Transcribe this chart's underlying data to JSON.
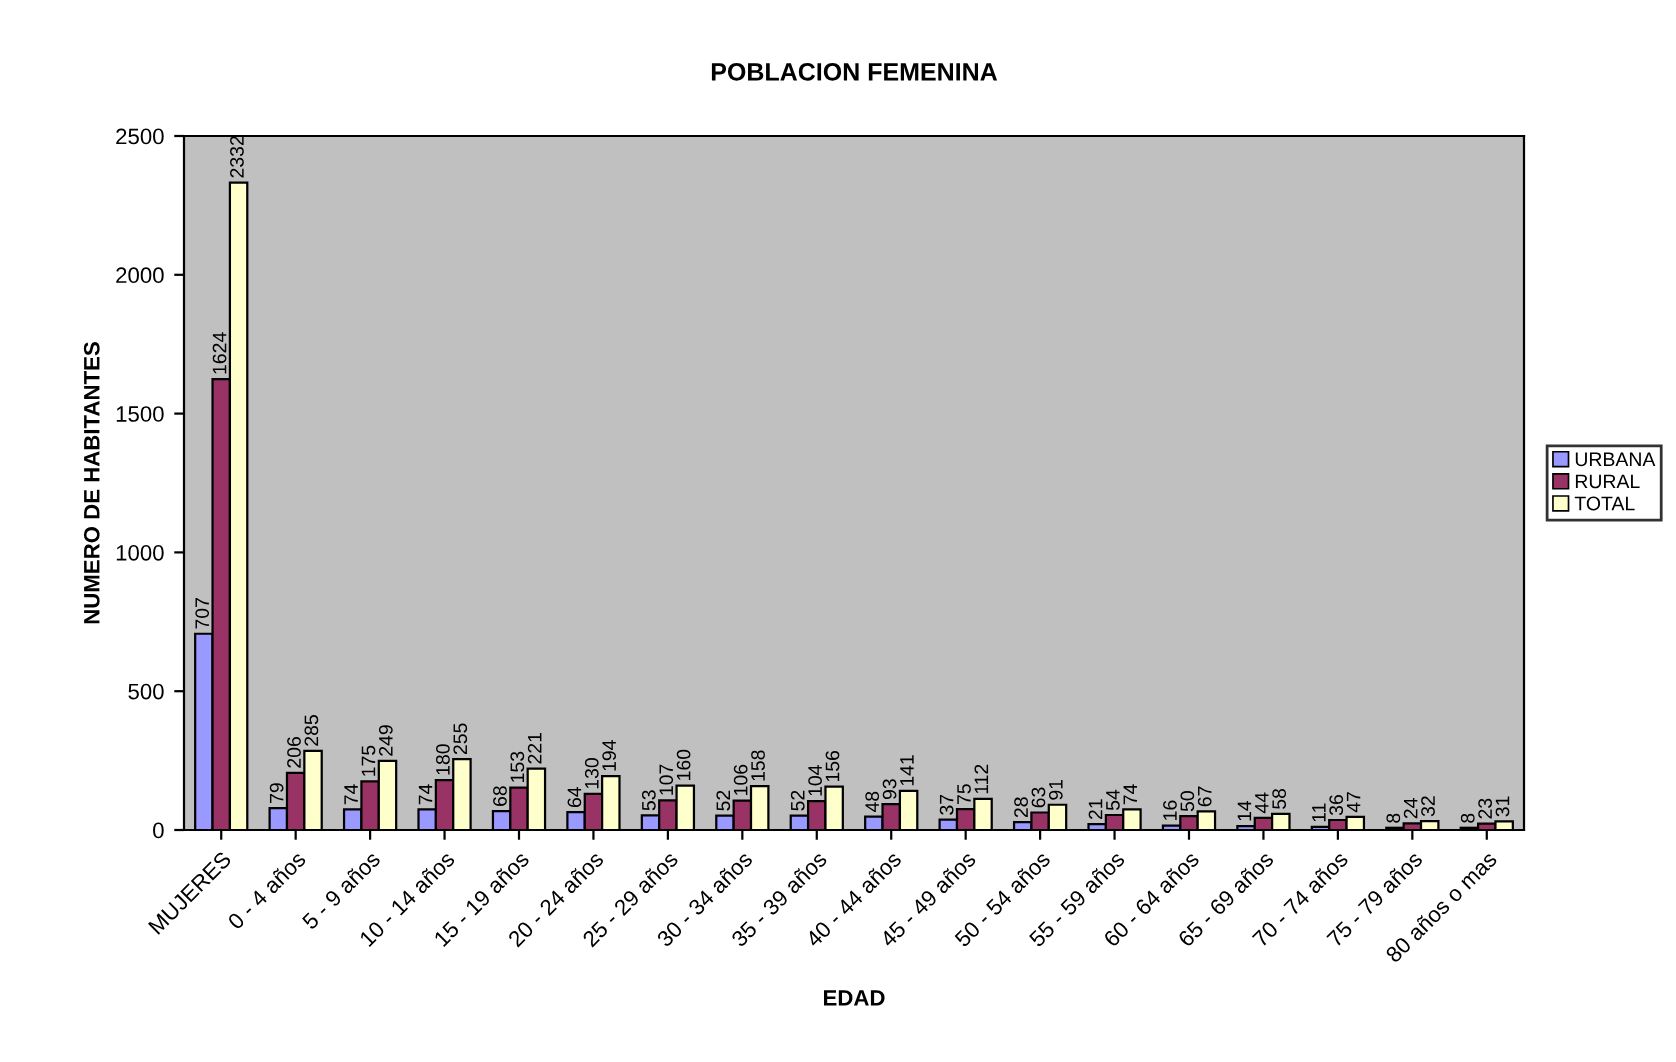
{
  "chart_data": {
    "type": "bar",
    "title": "POBLACION FEMENINA",
    "xlabel": "EDAD",
    "ylabel": "NUMERO DE HABITANTES",
    "categories": [
      "MUJERES",
      "0 - 4 años",
      "5 - 9 años",
      "10 - 14 años",
      "15 - 19 años",
      "20 - 24 años",
      "25 - 29 años",
      "30 - 34 años",
      "35 - 39 años",
      "40 - 44 años",
      "45 - 49 años",
      "50 - 54 años",
      "55 - 59 años",
      "60 - 64 años",
      "65 - 69 años",
      "70 - 74 años",
      "75 - 79 años",
      "80 años o mas"
    ],
    "series": [
      {
        "name": "URBANA",
        "color": "#9999ff",
        "values": [
          707,
          79,
          74,
          74,
          68,
          64,
          53,
          52,
          52,
          48,
          37,
          28,
          21,
          16,
          14,
          11,
          8,
          8
        ]
      },
      {
        "name": "RURAL",
        "color": "#993366",
        "values": [
          1624,
          206,
          175,
          180,
          153,
          130,
          107,
          106,
          104,
          93,
          75,
          63,
          54,
          50,
          44,
          36,
          24,
          23
        ]
      },
      {
        "name": "TOTAL",
        "color": "#ffffcc",
        "values": [
          2332,
          285,
          249,
          255,
          221,
          194,
          160,
          158,
          156,
          141,
          112,
          91,
          74,
          67,
          58,
          47,
          32,
          31
        ]
      }
    ],
    "ylim": [
      0,
      2500
    ],
    "yticks": [
      0,
      500,
      1000,
      1500,
      2000,
      2500
    ],
    "grid": false,
    "legend": "right",
    "data_labels": true
  }
}
